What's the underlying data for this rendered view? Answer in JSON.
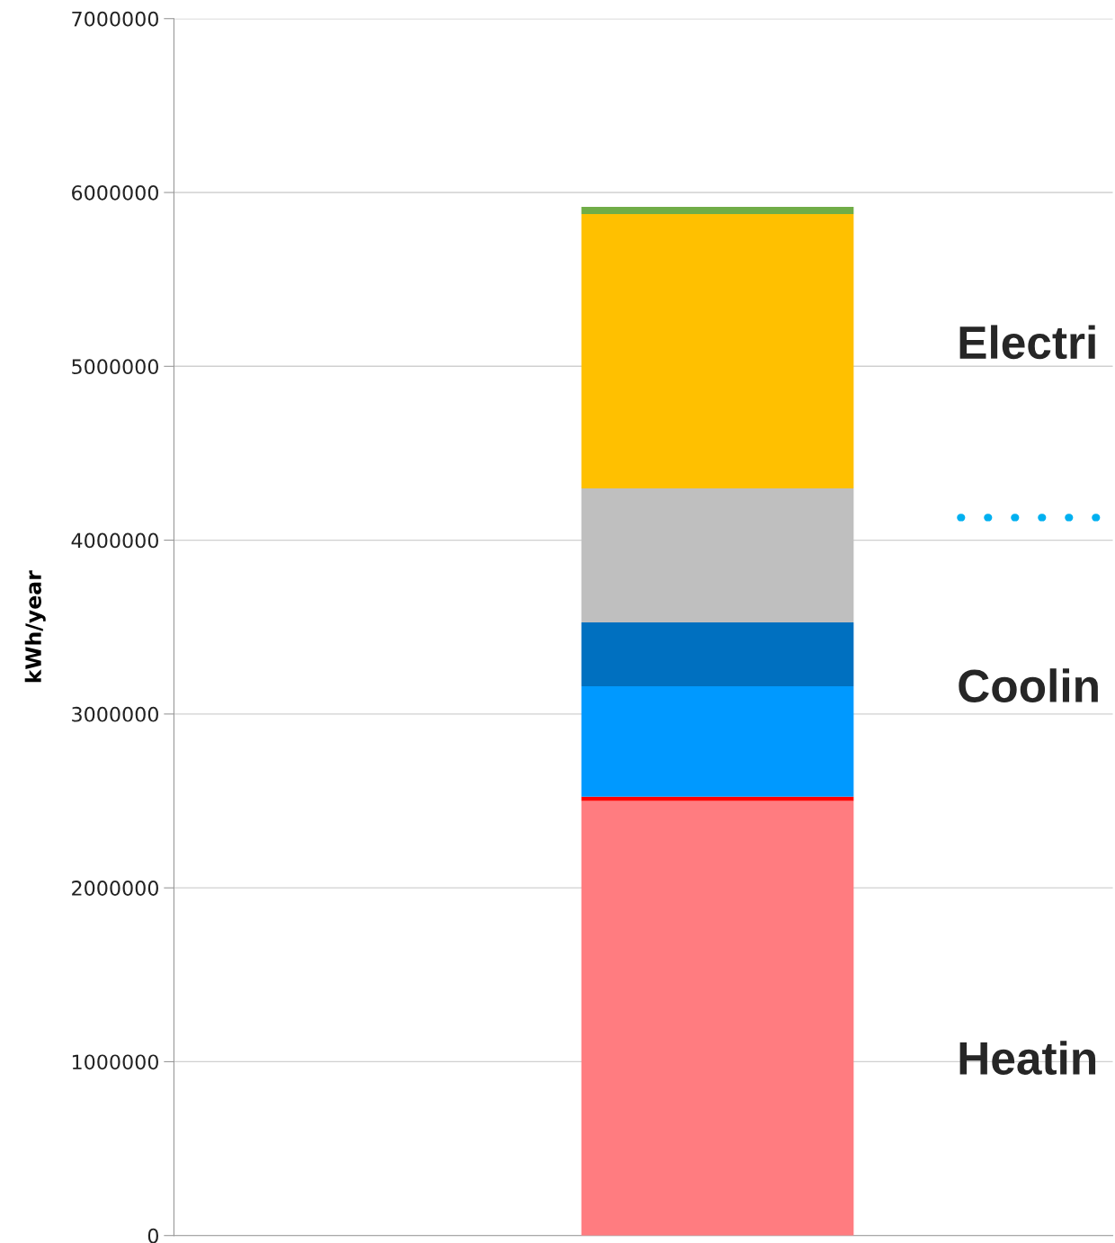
{
  "chart_data": {
    "type": "bar",
    "stacked": true,
    "ylabel": "kWh/year",
    "categories": [
      null
    ],
    "series": [
      {
        "color": "#ff7c80",
        "values": [
          2500000
        ]
      },
      {
        "color": "#ff0000",
        "values": [
          25000
        ]
      },
      {
        "color": "#0099ff",
        "values": [
          635000
        ]
      },
      {
        "color": "#0070c0",
        "values": [
          367000
        ]
      },
      {
        "color": "#bfbfbf",
        "values": [
          771000
        ]
      },
      {
        "color": "#ffc000",
        "values": [
          1578000
        ]
      },
      {
        "color": "#70ad47",
        "values": [
          41000
        ]
      }
    ],
    "ylim": [
      0,
      7000000
    ],
    "yticks": [
      0,
      1000000,
      2000000,
      3000000,
      4000000,
      5000000,
      6000000,
      7000000
    ],
    "grid": "y",
    "legend": false,
    "ref_lines": [
      {
        "axis": "y",
        "value": 4130000,
        "color": "#00b0f0",
        "line_style": "dotted"
      }
    ],
    "annotations": [
      "Electri",
      "Coolin",
      "Heatin"
    ]
  }
}
